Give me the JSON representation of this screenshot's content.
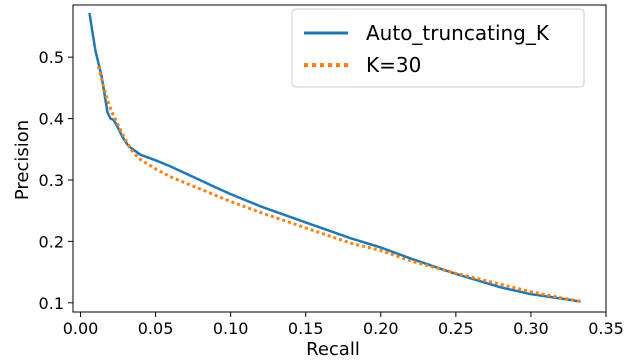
{
  "chart_data": {
    "type": "line",
    "xlabel": "Recall",
    "ylabel": "Precision",
    "xlim": [
      -0.005,
      0.35
    ],
    "ylim": [
      0.085,
      0.585
    ],
    "xticks": [
      "0.00",
      "0.05",
      "0.10",
      "0.15",
      "0.20",
      "0.25",
      "0.30",
      "0.35"
    ],
    "yticks": [
      "0.1",
      "0.2",
      "0.3",
      "0.4",
      "0.5"
    ],
    "legend_position": "top-right",
    "grid": false,
    "series": [
      {
        "name": "Auto_truncating_K",
        "color": "#1f77b4",
        "style": "solid",
        "points": [
          [
            0.006,
            0.572
          ],
          [
            0.008,
            0.54
          ],
          [
            0.01,
            0.51
          ],
          [
            0.012,
            0.49
          ],
          [
            0.014,
            0.47
          ],
          [
            0.016,
            0.44
          ],
          [
            0.018,
            0.41
          ],
          [
            0.02,
            0.4
          ],
          [
            0.022,
            0.398
          ],
          [
            0.025,
            0.385
          ],
          [
            0.028,
            0.37
          ],
          [
            0.032,
            0.355
          ],
          [
            0.04,
            0.341
          ],
          [
            0.05,
            0.332
          ],
          [
            0.06,
            0.322
          ],
          [
            0.075,
            0.305
          ],
          [
            0.09,
            0.288
          ],
          [
            0.1,
            0.277
          ],
          [
            0.12,
            0.257
          ],
          [
            0.15,
            0.231
          ],
          [
            0.18,
            0.205
          ],
          [
            0.2,
            0.19
          ],
          [
            0.22,
            0.172
          ],
          [
            0.25,
            0.147
          ],
          [
            0.28,
            0.125
          ],
          [
            0.3,
            0.114
          ],
          [
            0.32,
            0.107
          ],
          [
            0.333,
            0.102
          ]
        ]
      },
      {
        "name": "K=30",
        "color": "#ff7f0e",
        "style": "dotted",
        "points": [
          [
            0.012,
            0.485
          ],
          [
            0.015,
            0.455
          ],
          [
            0.018,
            0.43
          ],
          [
            0.021,
            0.41
          ],
          [
            0.025,
            0.39
          ],
          [
            0.03,
            0.365
          ],
          [
            0.035,
            0.345
          ],
          [
            0.04,
            0.333
          ],
          [
            0.05,
            0.318
          ],
          [
            0.06,
            0.305
          ],
          [
            0.075,
            0.29
          ],
          [
            0.09,
            0.275
          ],
          [
            0.1,
            0.265
          ],
          [
            0.12,
            0.247
          ],
          [
            0.15,
            0.222
          ],
          [
            0.18,
            0.197
          ],
          [
            0.2,
            0.185
          ],
          [
            0.22,
            0.168
          ],
          [
            0.25,
            0.148
          ],
          [
            0.28,
            0.13
          ],
          [
            0.3,
            0.118
          ],
          [
            0.32,
            0.108
          ],
          [
            0.334,
            0.102
          ]
        ]
      }
    ]
  }
}
